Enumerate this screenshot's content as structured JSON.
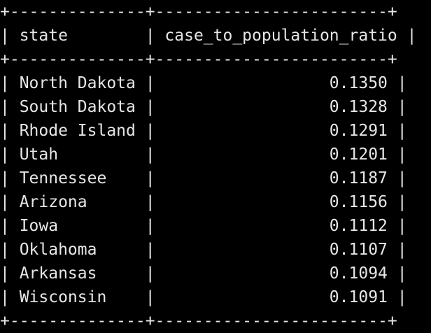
{
  "table": {
    "border": "+--------------+------------------------+",
    "header": "| state        | case_to_population_ratio |",
    "rows": [
      "| North Dakota |                  0.1350 |",
      "| South Dakota |                  0.1328 |",
      "| Rhode Island |                  0.1291 |",
      "| Utah         |                  0.1201 |",
      "| Tennessee    |                  0.1187 |",
      "| Arizona      |                  0.1156 |",
      "| Iowa         |                  0.1112 |",
      "| Oklahoma     |                  0.1107 |",
      "| Arkansas     |                  0.1094 |",
      "| Wisconsin    |                  0.1091 |"
    ]
  }
}
